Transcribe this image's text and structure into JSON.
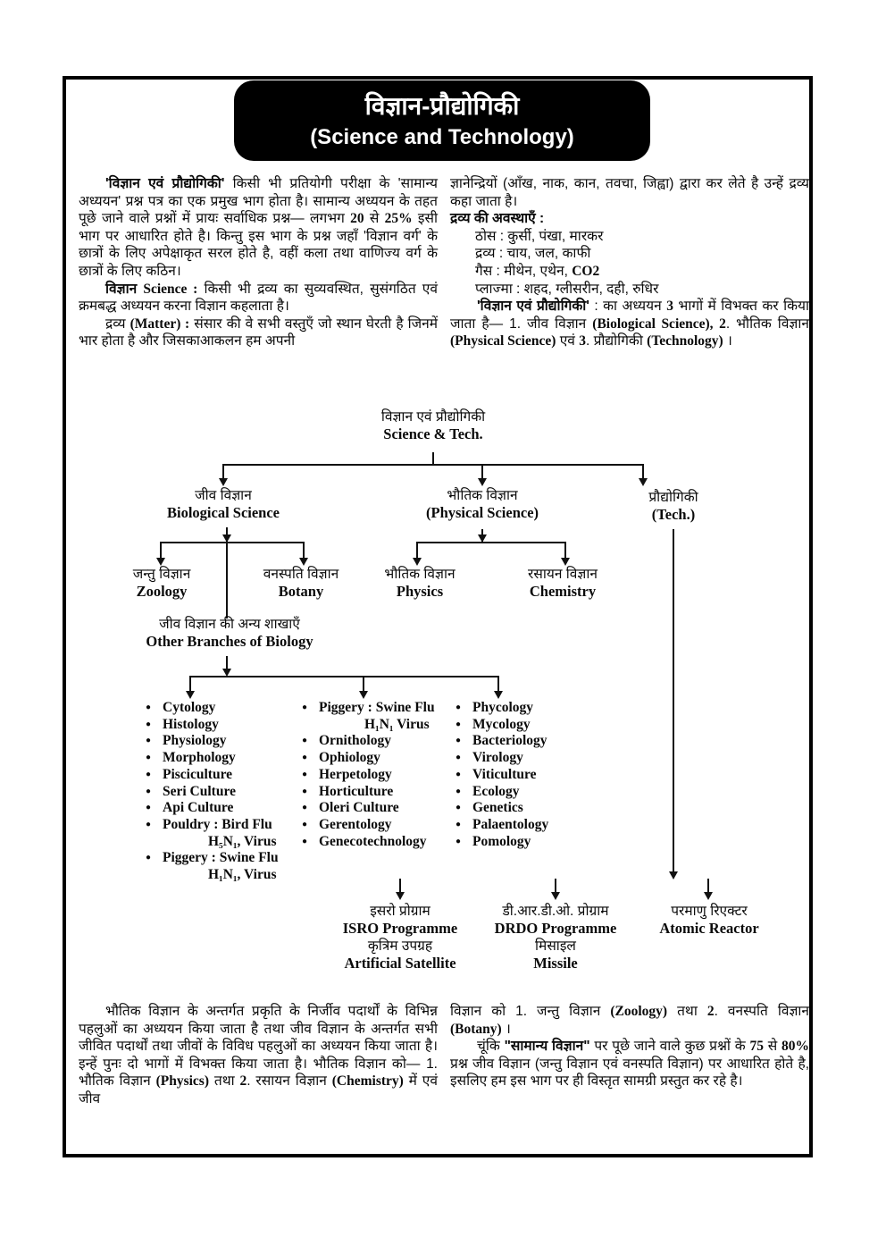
{
  "header": {
    "title_hi": "विज्ञान-प्रौद्योगिकी",
    "title_en": "(Science and Technology)"
  },
  "intro_left": [
    {
      "cls": "indent",
      "segs": [
        {
          "t": "'विज्ञान एवं प्रौद्योगिकी'",
          "b": true
        },
        {
          "t": " किसी भी प्रतियोगी परीक्षा के 'सामान्य अध्ययन' प्रश्न पत्र का एक प्रमुख भाग होता है। सामान्य अध्ययन के तहत पूछे जाने वाले प्रश्नों में प्रायः सर्वाधिक प्रश्न— लगभग "
        },
        {
          "t": "20",
          "b": true,
          "s": true
        },
        {
          "t": " से "
        },
        {
          "t": "25%",
          "b": true,
          "s": true
        },
        {
          "t": " इसी भाग पर आधारित होते है। किन्तु इस भाग के प्रश्न जहाँ 'विज्ञान वर्ग' के छात्रों के लिए अपेक्षाकृत सरल होते है, वहीं कला तथा वाणिज्य वर्ग के छात्रों के लिए कठिन।"
        }
      ]
    },
    {
      "cls": "indent",
      "segs": [
        {
          "t": "विज्ञान ",
          "b": true
        },
        {
          "t": "Science :",
          "b": true,
          "s": true
        },
        {
          "t": " किसी भी द्रव्य का सुव्यवस्थित, सुसंगठित एवं क्रमबद्ध अध्ययन करना विज्ञान कहलाता है।"
        }
      ]
    },
    {
      "cls": "indent",
      "segs": [
        {
          "t": "द्रव्य "
        },
        {
          "t": "(Matter) :",
          "b": true,
          "s": true
        },
        {
          "t": " संसार की वे सभी वस्तुएँ जो स्थान घेरती है जिनमें भार होता है और जिसकाआकलन हम अपनी"
        }
      ]
    }
  ],
  "intro_right": [
    {
      "segs": [
        {
          "t": "ज्ञानेन्द्रियों (आँख, नाक, कान, तवचा, जिह्वा) द्वारा कर लेते है उन्हें द्रव्य कहा जाता है।"
        }
      ]
    },
    {
      "segs": [
        {
          "t": "द्रव्य की अवस्थाएँ :",
          "b": true
        }
      ]
    },
    {
      "cls": "ind",
      "segs": [
        {
          "t": "ठोस : कुर्सी, पंखा, मारकर"
        }
      ]
    },
    {
      "cls": "ind",
      "segs": [
        {
          "t": "द्रव्य : चाय, जल, काफी"
        }
      ]
    },
    {
      "cls": "ind",
      "segs": [
        {
          "t": "गैस : मीथेन, एथेन, "
        },
        {
          "t": "CO2",
          "b": true,
          "s": true
        }
      ]
    },
    {
      "cls": "ind",
      "segs": [
        {
          "t": "प्लाज्मा : शहद, ग्लीसरीन, दही, रुधिर"
        }
      ]
    },
    {
      "cls": "indent",
      "segs": [
        {
          "t": "'विज्ञान एवं प्रौद्योगिकी'",
          "b": true
        },
        {
          "t": " : का अध्ययन "
        },
        {
          "t": "3",
          "b": true,
          "s": true
        },
        {
          "t": " भागों में विभक्त कर किया जाता है— 1. जीव विज्ञान "
        },
        {
          "t": "(Biological Science), 2",
          "b": true,
          "s": true
        },
        {
          "t": ". भौतिक विज्ञान "
        },
        {
          "t": "(Physical Science)",
          "b": true,
          "s": true
        },
        {
          "t": " एवं "
        },
        {
          "t": "3",
          "b": true,
          "s": true
        },
        {
          "t": ". प्रौद्योगिकी "
        },
        {
          "t": "(Technology)",
          "b": true,
          "s": true
        },
        {
          "t": " ।"
        }
      ]
    }
  ],
  "tree": {
    "root": {
      "hi": "विज्ञान एवं प्रौद्योगिकी",
      "en": "Science & Tech."
    },
    "level1": [
      {
        "hi": "जीव विज्ञान",
        "en": "Biological Science"
      },
      {
        "hi": "भौतिक विज्ञान",
        "en": "(Physical Science)"
      },
      {
        "hi": "प्रौद्योगिकी",
        "en": "(Tech.)"
      }
    ],
    "level2": [
      {
        "hi": "जन्तु विज्ञान",
        "en": "Zoology"
      },
      {
        "hi": "वनस्पति विज्ञान",
        "en": "Botany"
      },
      {
        "hi": "भौतिक विज्ञान",
        "en": "Physics"
      },
      {
        "hi": "रसायन विज्ञान",
        "en": "Chemistry"
      }
    ],
    "other_branches": {
      "hi": "जीव विज्ञान की अन्य शाखाएँ",
      "en": "Other Branches of Biology"
    },
    "biology_lists": {
      "col1": [
        {
          "lines": [
            "Cytology"
          ]
        },
        {
          "lines": [
            "Histology"
          ]
        },
        {
          "lines": [
            "Physiology"
          ]
        },
        {
          "lines": [
            "Morphology"
          ]
        },
        {
          "lines": [
            "Pisciculture"
          ]
        },
        {
          "lines": [
            "Seri Culture"
          ]
        },
        {
          "lines": [
            "Api Culture"
          ]
        },
        {
          "lines": [
            "Pouldry : Bird Flu",
            "H₅N₁, Virus"
          ]
        },
        {
          "lines": [
            "Piggery : Swine Flu",
            "H₁N₁, Virus"
          ]
        }
      ],
      "col2": [
        {
          "lines": [
            "Piggery : Swine Flu",
            "H₁N₁ Virus"
          ]
        },
        {
          "lines": [
            "Ornithology"
          ]
        },
        {
          "lines": [
            "Ophiology"
          ]
        },
        {
          "lines": [
            "Herpetology"
          ]
        },
        {
          "lines": [
            "Horticulture"
          ]
        },
        {
          "lines": [
            "Oleri Culture"
          ]
        },
        {
          "lines": [
            "Gerentology"
          ]
        },
        {
          "lines": [
            "Genecotechnology"
          ]
        }
      ],
      "col3": [
        {
          "lines": [
            "Phycology"
          ]
        },
        {
          "lines": [
            "Mycology"
          ]
        },
        {
          "lines": [
            "Bacteriology"
          ]
        },
        {
          "lines": [
            "Virology"
          ]
        },
        {
          "lines": [
            "Viticulture"
          ]
        },
        {
          "lines": [
            "Ecology"
          ]
        },
        {
          "lines": [
            "Genetics"
          ]
        },
        {
          "lines": [
            "Palaentology"
          ]
        },
        {
          "lines": [
            "Pomology"
          ]
        }
      ]
    },
    "bottom": {
      "isro": {
        "lines": [
          "इसरो प्रोग्राम",
          "ISRO Programme",
          "कृत्रिम उपग्रह",
          "Artificial Satellite"
        ]
      },
      "drdo": {
        "lines": [
          "डी.आर.डी.ओ. प्रोग्राम",
          "DRDO Programme",
          "मिसाइल",
          "Missile"
        ]
      },
      "atomic": {
        "lines": [
          "परमाणु रिएक्टर",
          "Atomic Reactor"
        ]
      }
    }
  },
  "bottom_left": [
    {
      "cls": "indent",
      "segs": [
        {
          "t": "भौतिक विज्ञान के अन्तर्गत प्रकृति के निर्जीव पदार्थों के विभिन्न पहलुओं का अध्ययन किया जाता है तथा जीव विज्ञान के अन्तर्गत सभी जीवित पदार्थों तथा जीवों के विविध पहलुओं का अध्ययन किया जाता है। इन्हें पुनः दो भागों में विभक्त किया जाता है। भौतिक विज्ञान को— 1. भौतिक विज्ञान "
        },
        {
          "t": "(Physics)",
          "b": true,
          "s": true
        },
        {
          "t": " तथा "
        },
        {
          "t": "2",
          "b": true,
          "s": true
        },
        {
          "t": ". रसायन विज्ञान "
        },
        {
          "t": "(Chemistry)",
          "b": true,
          "s": true
        },
        {
          "t": " में एवं जीव"
        }
      ]
    }
  ],
  "bottom_right": [
    {
      "segs": [
        {
          "t": "विज्ञान को 1. जन्तु विज्ञान "
        },
        {
          "t": "(Zoology)",
          "b": true,
          "s": true
        },
        {
          "t": " तथा "
        },
        {
          "t": "2",
          "b": true,
          "s": true
        },
        {
          "t": ". वनस्पति विज्ञान "
        },
        {
          "t": "(Botany)",
          "b": true,
          "s": true
        },
        {
          "t": " ।"
        }
      ]
    },
    {
      "cls": "indent",
      "segs": [
        {
          "t": "चूंकि "
        },
        {
          "t": "\"सामान्य विज्ञान\"",
          "b": true
        },
        {
          "t": " पर पूछे जाने वाले कुछ प्रश्नों के "
        },
        {
          "t": "75",
          "b": true,
          "s": true
        },
        {
          "t": " से "
        },
        {
          "t": "80%",
          "b": true,
          "s": true
        },
        {
          "t": " प्रश्न जीव विज्ञान (जन्तु विज्ञान एवं वनस्पति विज्ञान) पर आधारित होते है, इसलिए हम इस भाग पर ही विस्तृत सामग्री प्रस्तुत कर रहे है।"
        }
      ]
    }
  ],
  "colors": {
    "ink": "#0a0a0a",
    "paper": "#ffffff",
    "header_bg": "#000000",
    "header_text": "#ffffff"
  }
}
